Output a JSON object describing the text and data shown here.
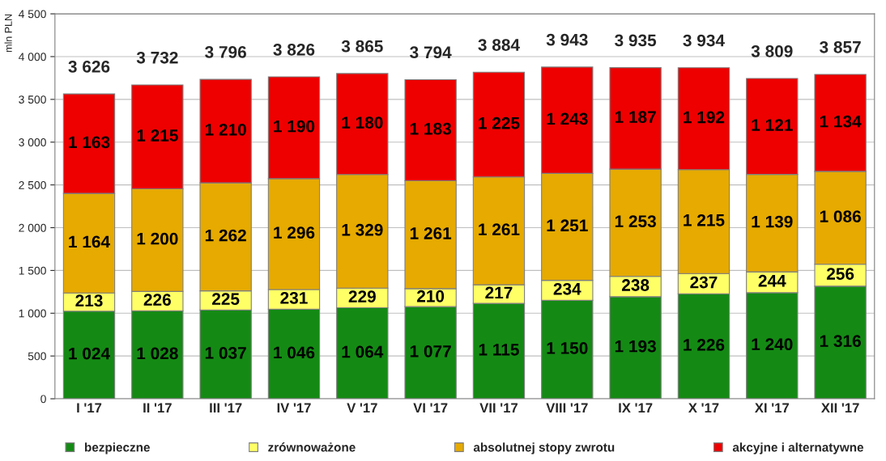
{
  "chart_data": {
    "type": "bar",
    "stacked": true,
    "ylabel": "mln PLN",
    "categories": [
      "I '17",
      "II '17",
      "III '17",
      "IV '17",
      "V '17",
      "VI '17",
      "VII '17",
      "VIII '17",
      "IX '17",
      "X '17",
      "XI '17",
      "XII '17"
    ],
    "series": [
      {
        "name": "bezpieczne",
        "color": "#148a14",
        "values": [
          1024,
          1028,
          1037,
          1046,
          1064,
          1077,
          1115,
          1150,
          1193,
          1226,
          1240,
          1316
        ],
        "value_labels": [
          "1 024",
          "1 028",
          "1 037",
          "1 046",
          "1 064",
          "1 077",
          "1 115",
          "1 150",
          "1 193",
          "1 226",
          "1 240",
          "1 316"
        ]
      },
      {
        "name": "zrównoważone",
        "color": "#ffff66",
        "values": [
          213,
          226,
          225,
          231,
          229,
          210,
          217,
          234,
          238,
          237,
          244,
          256
        ],
        "value_labels": [
          "213",
          "226",
          "225",
          "231",
          "229",
          "210",
          "217",
          "234",
          "238",
          "237",
          "244",
          "256"
        ]
      },
      {
        "name": "absolutnej stopy zwrotu",
        "color": "#e6aa00",
        "values": [
          1164,
          1200,
          1262,
          1296,
          1329,
          1261,
          1261,
          1251,
          1253,
          1215,
          1139,
          1086
        ],
        "value_labels": [
          "1 164",
          "1 200",
          "1 262",
          "1 296",
          "1 329",
          "1 261",
          "1 261",
          "1 251",
          "1 253",
          "1 215",
          "1 139",
          "1 086"
        ]
      },
      {
        "name": "akcyjne i alternatywne",
        "color": "#ee0000",
        "values": [
          1163,
          1215,
          1210,
          1190,
          1180,
          1183,
          1225,
          1243,
          1187,
          1192,
          1121,
          1134
        ],
        "value_labels": [
          "1 163",
          "1 215",
          "1 210",
          "1 190",
          "1 180",
          "1 183",
          "1 225",
          "1 243",
          "1 187",
          "1 192",
          "1 121",
          "1 134"
        ]
      }
    ],
    "annotations": [
      "3 626",
      "3 732",
      "3 796",
      "3 826",
      "3 865",
      "3 794",
      "3 884",
      "3 943",
      "3 935",
      "3 934",
      "3 809",
      "3 857"
    ],
    "ylim": [
      0,
      4500
    ],
    "yticks": [
      0,
      500,
      {
        "value": 1000,
        "label": "1 000"
      },
      {
        "value": 1500,
        "label": "1 500"
      },
      {
        "value": 2000,
        "label": "2 000"
      },
      {
        "value": 2500,
        "label": "2 500"
      },
      {
        "value": 3000,
        "label": "3 000"
      },
      {
        "value": 3500,
        "label": "3 500"
      },
      {
        "value": 4000,
        "label": "4 000"
      },
      {
        "value": 4500,
        "label": "4 500"
      }
    ],
    "grid": "y",
    "legend": "bottom"
  }
}
